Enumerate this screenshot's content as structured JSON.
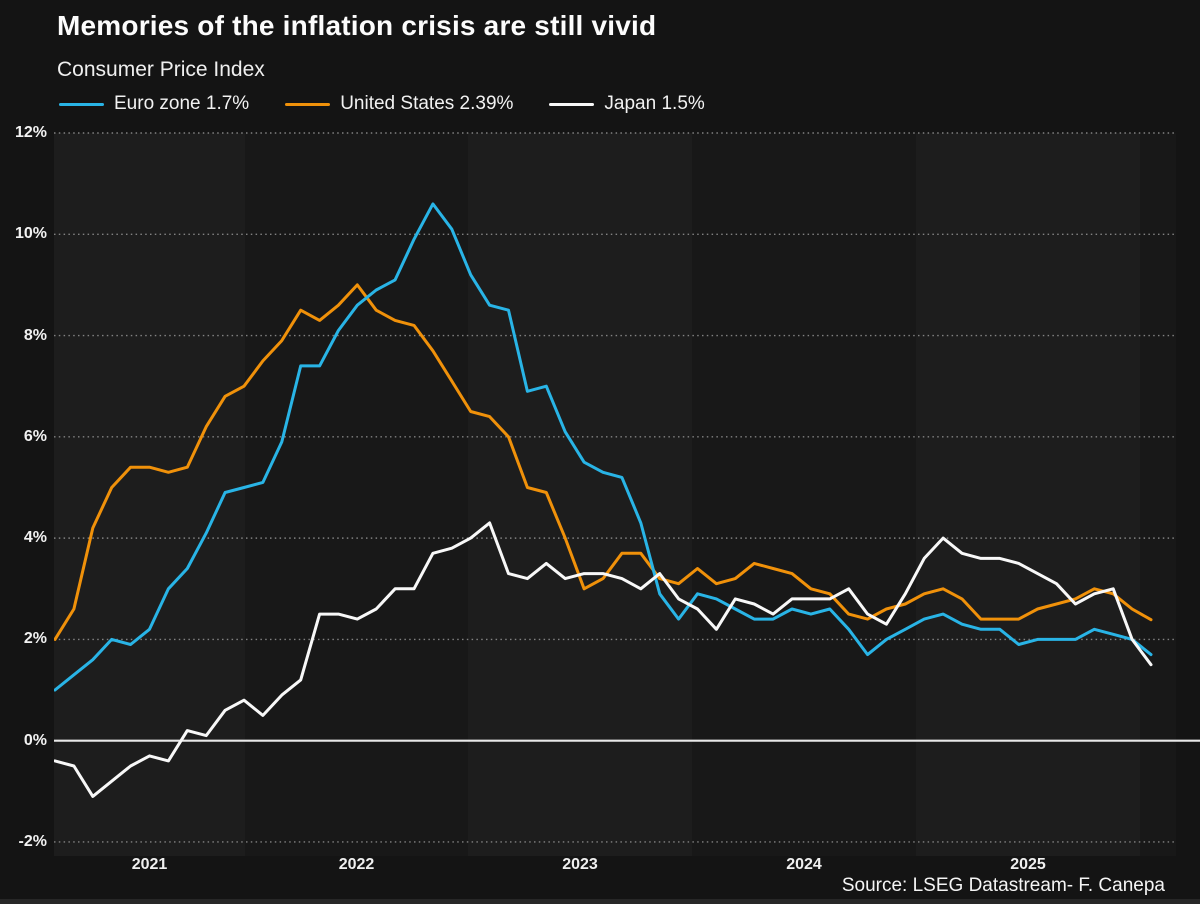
{
  "page": {
    "title": "Memories of the inflation crisis are still vivid",
    "subtitle": "Consumer Price Index",
    "source": "Source: LSEG Datastream- F. Canepa"
  },
  "chart_data": {
    "type": "line",
    "title": "Consumer Price Index",
    "unit": "percent year-on-year",
    "frequency": "monthly",
    "ylim": [
      -2,
      12
    ],
    "y_ticks": [
      12,
      10,
      8,
      6,
      4,
      2,
      0,
      -2
    ],
    "y_tick_labels": [
      "12%",
      "10%",
      "8%",
      "6%",
      "4%",
      "2%",
      "0%",
      "-2%"
    ],
    "x_tick_labels": [
      "2021",
      "2022",
      "2023",
      "2024",
      "2025"
    ],
    "grid": "dotted horizontal gridlines, solid line at 0%, alternating vertical year bands",
    "legend_position": "top-left",
    "series": [
      {
        "name": "Euro zone",
        "legend_label": "Euro zone 1.7%",
        "latest": 1.7,
        "color": "#29b4e6",
        "values": [
          1.0,
          1.3,
          1.6,
          2.0,
          1.9,
          2.2,
          3.0,
          3.4,
          4.1,
          4.9,
          5.0,
          5.1,
          5.9,
          7.4,
          7.4,
          8.1,
          8.6,
          8.9,
          9.1,
          9.9,
          10.6,
          10.1,
          9.2,
          8.6,
          8.5,
          6.9,
          7.0,
          6.1,
          5.5,
          5.3,
          5.2,
          4.3,
          2.9,
          2.4,
          2.9,
          2.8,
          2.6,
          2.4,
          2.4,
          2.6,
          2.5,
          2.6,
          2.2,
          1.7,
          2.0,
          2.2,
          2.4,
          2.5,
          2.3,
          2.2,
          2.2,
          1.9,
          2.0,
          2.0,
          2.0,
          2.2,
          2.1,
          2.0,
          1.7
        ]
      },
      {
        "name": "United States",
        "legend_label": "United States 2.39%",
        "latest": 2.39,
        "color": "#f0910a",
        "values": [
          2.0,
          2.6,
          4.2,
          5.0,
          5.4,
          5.4,
          5.3,
          5.4,
          6.2,
          6.8,
          7.0,
          7.5,
          7.9,
          8.5,
          8.3,
          8.6,
          9.0,
          8.5,
          8.3,
          8.2,
          7.7,
          7.1,
          6.5,
          6.4,
          6.0,
          5.0,
          4.9,
          4.0,
          3.0,
          3.2,
          3.7,
          3.7,
          3.2,
          3.1,
          3.4,
          3.1,
          3.2,
          3.5,
          3.4,
          3.3,
          3.0,
          2.9,
          2.5,
          2.4,
          2.6,
          2.7,
          2.9,
          3.0,
          2.8,
          2.4,
          2.4,
          2.4,
          2.6,
          2.7,
          2.8,
          3.0,
          2.9,
          2.6,
          2.39
        ]
      },
      {
        "name": "Japan",
        "legend_label": "Japan 1.5%",
        "latest": 1.5,
        "color": "#f8f8f8",
        "values": [
          -0.4,
          -0.5,
          -1.1,
          -0.8,
          -0.5,
          -0.3,
          -0.4,
          0.2,
          0.1,
          0.6,
          0.8,
          0.5,
          0.9,
          1.2,
          2.5,
          2.5,
          2.4,
          2.6,
          3.0,
          3.0,
          3.7,
          3.8,
          4.0,
          4.3,
          3.3,
          3.2,
          3.5,
          3.2,
          3.3,
          3.3,
          3.2,
          3.0,
          3.3,
          2.8,
          2.6,
          2.2,
          2.8,
          2.7,
          2.5,
          2.8,
          2.8,
          2.8,
          3.0,
          2.5,
          2.3,
          2.9,
          3.6,
          4.0,
          3.7,
          3.6,
          3.6,
          3.5,
          3.3,
          3.1,
          2.7,
          2.9,
          3.0,
          2.0,
          1.5
        ]
      }
    ]
  },
  "colors": {
    "background": "#141414",
    "band_light": "#1d1d1d",
    "band_dark": "#181818",
    "grid_dots": "#8d8d8d",
    "zero_line": "#e8e8e8",
    "text": "#f2f2f2"
  }
}
